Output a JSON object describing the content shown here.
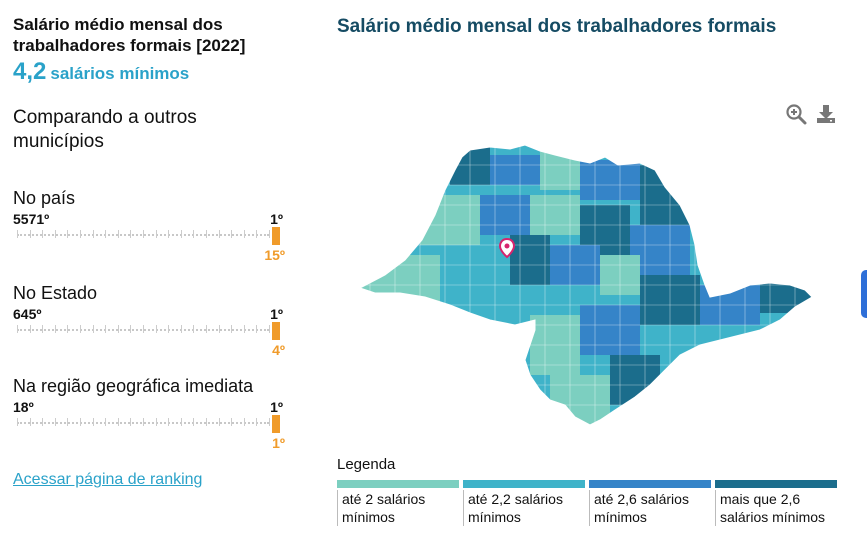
{
  "indicator": {
    "title": "Salário médio mensal dos trabalhadores formais [2022]",
    "value": "4,2",
    "unit": "salários mínimos"
  },
  "compare_heading": "Comparando a outros municípios",
  "rankings": [
    {
      "label": "No país",
      "min": "5571º",
      "max": "1º",
      "position": "15º",
      "position_value": 15,
      "total": 5571
    },
    {
      "label": "No Estado",
      "min": "645º",
      "max": "1º",
      "position": "4º",
      "position_value": 4,
      "total": 645
    },
    {
      "label": "Na região geográfica imediata",
      "min": "18º",
      "max": "1º",
      "position": "1º",
      "position_value": 1,
      "total": 18
    }
  ],
  "ranking_link": "Acessar página de ranking",
  "map": {
    "title": "Salário médio mensal dos trabalhadores formais",
    "zoom_icon": "zoom-in-icon",
    "download_icon": "download-icon",
    "marker_icon": "location-pin-icon"
  },
  "legend": {
    "title": "Legenda",
    "items": [
      {
        "label": "até 2 salários mínimos",
        "color": "#7ccfc0"
      },
      {
        "label": "até 2,2 salários mínimos",
        "color": "#3fb3c9"
      },
      {
        "label": "até 2,6 salários mínimos",
        "color": "#3584c8"
      },
      {
        "label": "mais que 2,6 salários mínimos",
        "color": "#1b6d8c"
      }
    ]
  }
}
